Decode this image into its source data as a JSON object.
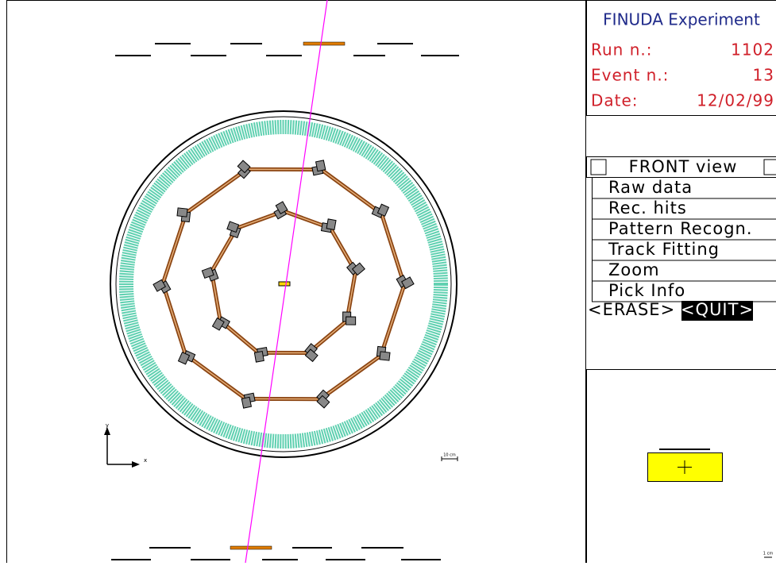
{
  "header": {
    "title": "FINUDA Experiment",
    "run_label": "Run n.:",
    "run": "1102",
    "event_label": "Event n.:",
    "event": "13",
    "date_label": "Date:",
    "date": "12/02/99"
  },
  "menu": {
    "title": "FRONT view",
    "items": [
      "Raw data",
      "Rec. hits",
      "Pattern Recogn.",
      "Track Fitting",
      "Zoom",
      "Pick Info"
    ],
    "erase": "<ERASE>",
    "quit": "<QUIT>"
  },
  "display": {
    "y_axis": "y",
    "x_axis": "x",
    "scale": "10 cm",
    "zoom_scale": "1 cm"
  }
}
